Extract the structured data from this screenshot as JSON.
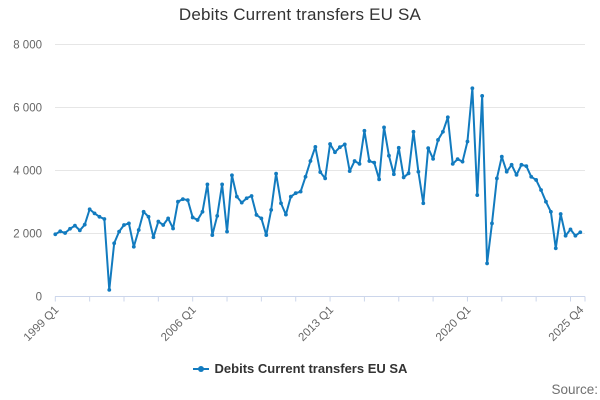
{
  "title": "Debits Current transfers EU SA",
  "legend": {
    "series_label": "Debits Current transfers EU SA"
  },
  "source_label": "Source:",
  "colors": {
    "series": "#127bbf",
    "grid": "#e6e6e6",
    "axis_line": "#ccd6eb",
    "title_text": "#333333",
    "tick_text": "#666666"
  },
  "chart_data": {
    "type": "line",
    "title": "Debits Current transfers EU SA",
    "x_unit": "quarter",
    "x_start": "1999 Q1",
    "x_end": "2025 Q4",
    "n_points": 108,
    "x_tick_labels": [
      {
        "index": 0,
        "label": "1999 Q1"
      },
      {
        "index": 28,
        "label": "2006 Q1"
      },
      {
        "index": 56,
        "label": "2013 Q1"
      },
      {
        "index": 84,
        "label": "2020 Q1"
      },
      {
        "index": 107,
        "label": "2025 Q4"
      }
    ],
    "minor_tick_every_quarters": 7,
    "ylim": [
      0,
      8000
    ],
    "y_ticks": [
      {
        "value": 0,
        "label": "0"
      },
      {
        "value": 2000,
        "label": "2 000"
      },
      {
        "value": 4000,
        "label": "4 000"
      },
      {
        "value": 6000,
        "label": "6 000"
      },
      {
        "value": 8000,
        "label": "8 000"
      }
    ],
    "grid": true,
    "legend_position": "bottom",
    "series": [
      {
        "name": "Debits Current transfers EU SA",
        "values": [
          1975,
          2070,
          2016,
          2150,
          2250,
          2100,
          2280,
          2770,
          2640,
          2530,
          2460,
          210,
          1690,
          2060,
          2270,
          2320,
          1580,
          2110,
          2690,
          2530,
          1880,
          2380,
          2270,
          2480,
          2160,
          3010,
          3090,
          3060,
          2510,
          2430,
          2690,
          3560,
          1950,
          2560,
          3560,
          2060,
          3850,
          3170,
          2980,
          3120,
          3190,
          2590,
          2480,
          1950,
          2750,
          3900,
          2960,
          2600,
          3170,
          3280,
          3330,
          3800,
          4300,
          4750,
          3950,
          3750,
          4840,
          4580,
          4740,
          4830,
          3980,
          4300,
          4210,
          5260,
          4300,
          4250,
          3720,
          5370,
          4470,
          3880,
          4720,
          3780,
          3910,
          5230,
          3960,
          2960,
          4710,
          4370,
          4970,
          5230,
          5690,
          4210,
          4360,
          4280,
          4920,
          6610,
          3220,
          6370,
          1050,
          2320,
          3750,
          4440,
          3960,
          4180,
          3860,
          4180,
          4140,
          3800,
          3700,
          3380,
          3010,
          2690,
          1530,
          2620,
          1930,
          2130,
          1930,
          2040
        ]
      }
    ]
  }
}
